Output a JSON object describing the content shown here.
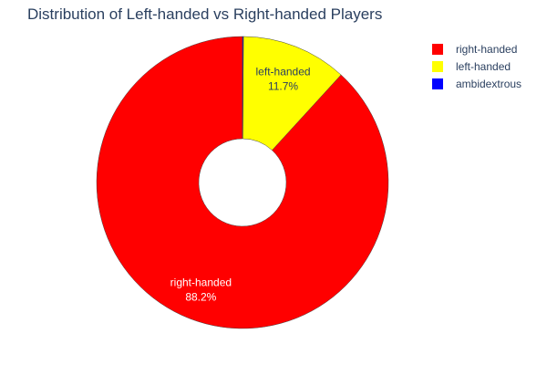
{
  "chart_data": {
    "type": "pie",
    "title": "Distribution of Left-handed vs Right-handed Players",
    "hole": true,
    "legend_position": "top-right",
    "slices": [
      {
        "label": "right-handed",
        "percent": 88.2,
        "percent_text": "88.2%",
        "color": "#ff0000",
        "label_color": "#ffffff"
      },
      {
        "label": "left-handed",
        "percent": 11.7,
        "percent_text": "11.7%",
        "color": "#ffff00",
        "label_color": "#2a3f5f"
      },
      {
        "label": "ambidextrous",
        "percent": 0.1,
        "percent_text": "",
        "color": "#0000ff",
        "label_color": "#2a3f5f"
      }
    ]
  }
}
